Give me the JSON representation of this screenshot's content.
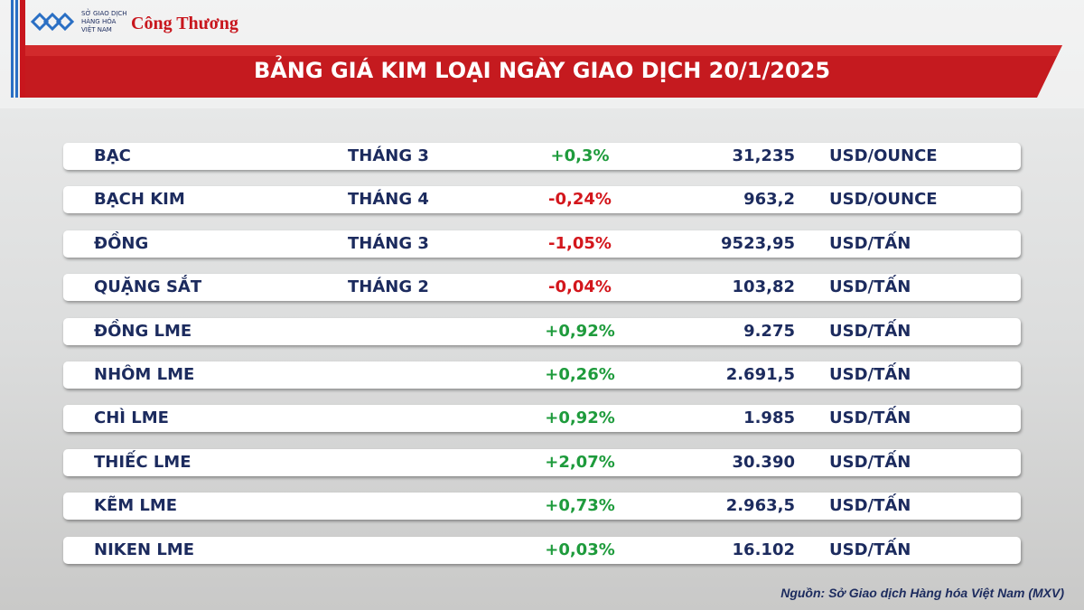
{
  "header": {
    "logo_org_lines": [
      "SỞ GIAO DỊCH",
      "HÀNG HÓA",
      "VIỆT NAM"
    ],
    "logo_brand": "Công Thương",
    "title": "BẢNG GIÁ KIM LOẠI NGÀY GIAO DỊCH 20/1/2025"
  },
  "table": {
    "rows": [
      {
        "name": "BẠC",
        "month": "THÁNG 3",
        "change": "+0,3%",
        "change_color": "#1e9b3c",
        "price": "31,235",
        "unit": "USD/OUNCE"
      },
      {
        "name": "BẠCH KIM",
        "month": "THÁNG 4",
        "change": "-0,24%",
        "change_color": "#d3161c",
        "price": "963,2",
        "unit": "USD/OUNCE"
      },
      {
        "name": "ĐỒNG",
        "month": "THÁNG 3",
        "change": "-1,05%",
        "change_color": "#d3161c",
        "price": "9523,95",
        "unit": "USD/TẤN"
      },
      {
        "name": "QUẶNG SẮT",
        "month": "THÁNG 2",
        "change": "-0,04%",
        "change_color": "#d3161c",
        "price": "103,82",
        "unit": "USD/TẤN"
      },
      {
        "name": "ĐỒNG LME",
        "month": null,
        "change": "+0,92%",
        "change_color": "#1e9b3c",
        "price": "9.275",
        "unit": "USD/TẤN"
      },
      {
        "name": "NHÔM LME",
        "month": null,
        "change": "+0,26%",
        "change_color": "#1e9b3c",
        "price": "2.691,5",
        "unit": "USD/TẤN"
      },
      {
        "name": "CHÌ LME",
        "month": null,
        "change": "+0,92%",
        "change_color": "#1e9b3c",
        "price": "1.985",
        "unit": "USD/TẤN"
      },
      {
        "name": "THIẾC LME",
        "month": null,
        "change": "+2,07%",
        "change_color": "#1e9b3c",
        "price": "30.390",
        "unit": "USD/TẤN"
      },
      {
        "name": "KẼM LME",
        "month": null,
        "change": "+0,73%",
        "change_color": "#1e9b3c",
        "price": "2.963,5",
        "unit": "USD/TẤN"
      },
      {
        "name": "NIKEN LME",
        "month": null,
        "change": "+0,03%",
        "change_color": "#1e9b3c",
        "price": "16.102",
        "unit": "USD/TẤN"
      }
    ]
  },
  "footer": {
    "source": "Nguồn: Sở Giao dịch Hàng hóa Việt Nam (MXV)"
  }
}
